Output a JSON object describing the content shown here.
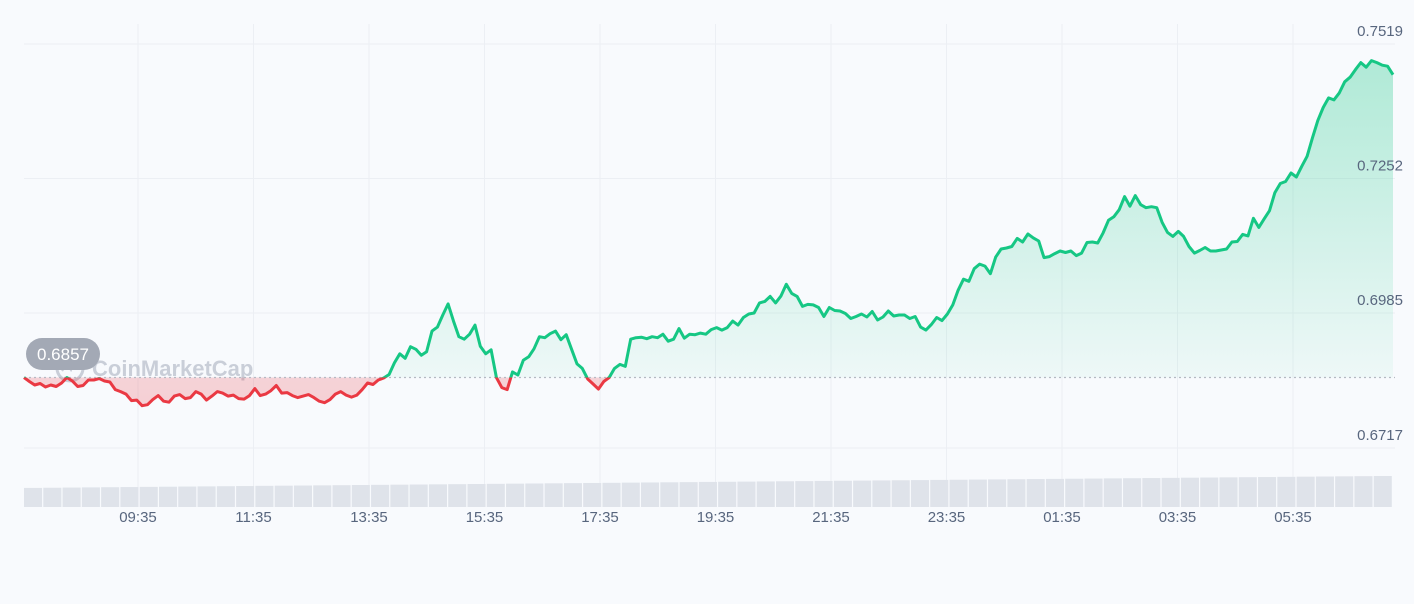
{
  "chart_data": {
    "type": "area",
    "title": "",
    "xlabel": "",
    "ylabel": "",
    "x_ticks": [
      "09:35",
      "11:35",
      "13:35",
      "15:35",
      "17:35",
      "19:35",
      "21:35",
      "23:35",
      "01:35",
      "03:35",
      "05:35"
    ],
    "y_ticks": [
      0.7519,
      0.7252,
      0.6985,
      0.6717
    ],
    "y_tick_labels": [
      "0.7519",
      "0.7252",
      "0.6985",
      "0.6717"
    ],
    "ylim": [
      0.6717,
      0.7519
    ],
    "reference_value": 0.6857,
    "reference_label": "0.6857",
    "grid": true,
    "colors": {
      "up": "#16c784",
      "down": "#ea3943",
      "volume": "#dfe3ea",
      "badge": "#a3a9b5"
    },
    "series": [
      {
        "values": [
          0.6857,
          0.6849,
          0.6842,
          0.6845,
          0.6838,
          0.6842,
          0.6839,
          0.6846,
          0.6857,
          0.685,
          0.6839,
          0.6841,
          0.6852,
          0.6852,
          0.6855,
          0.685,
          0.6848,
          0.6833,
          0.6829,
          0.6824,
          0.6811,
          0.6812,
          0.6801,
          0.6803,
          0.6813,
          0.6821,
          0.681,
          0.6808,
          0.682,
          0.6823,
          0.6815,
          0.6817,
          0.6829,
          0.6824,
          0.6812,
          0.682,
          0.6829,
          0.6826,
          0.682,
          0.6822,
          0.6815,
          0.6814,
          0.6821,
          0.6835,
          0.6821,
          0.6824,
          0.6831,
          0.6841,
          0.6826,
          0.6827,
          0.6821,
          0.6817,
          0.682,
          0.6823,
          0.6817,
          0.681,
          0.6807,
          0.6813,
          0.6824,
          0.6829,
          0.6822,
          0.6818,
          0.6822,
          0.6833,
          0.6846,
          0.6843,
          0.6852,
          0.6856,
          0.6863,
          0.6886,
          0.6904,
          0.6895,
          0.6918,
          0.6913,
          0.6901,
          0.6908,
          0.6949,
          0.6957,
          0.6981,
          0.7003,
          0.6969,
          0.6938,
          0.6933,
          0.6943,
          0.6961,
          0.6919,
          0.6904,
          0.6912,
          0.6857,
          0.6837,
          0.6833,
          0.6868,
          0.6862,
          0.6891,
          0.6898,
          0.6914,
          0.6938,
          0.6936,
          0.6944,
          0.6949,
          0.6932,
          0.6942,
          0.6913,
          0.6884,
          0.6875,
          0.6854,
          0.6844,
          0.6834,
          0.6849,
          0.6857,
          0.6875,
          0.6883,
          0.6879,
          0.6933,
          0.6936,
          0.6937,
          0.6934,
          0.6938,
          0.6936,
          0.6943,
          0.6929,
          0.6933,
          0.6954,
          0.6935,
          0.6943,
          0.6942,
          0.6945,
          0.6943,
          0.6952,
          0.6956,
          0.6951,
          0.6956,
          0.6969,
          0.6961,
          0.6976,
          0.6983,
          0.6985,
          0.7005,
          0.7008,
          0.7018,
          0.7005,
          0.7019,
          0.7042,
          0.7024,
          0.7018,
          0.6998,
          0.7002,
          0.7001,
          0.6996,
          0.6978,
          0.6996,
          0.699,
          0.6989,
          0.6984,
          0.6974,
          0.6978,
          0.6983,
          0.6977,
          0.6988,
          0.6971,
          0.6977,
          0.6989,
          0.6979,
          0.6981,
          0.6981,
          0.6974,
          0.6978,
          0.6957,
          0.6951,
          0.6962,
          0.6976,
          0.697,
          0.6983,
          0.7001,
          0.703,
          0.7052,
          0.7048,
          0.7073,
          0.7082,
          0.7078,
          0.7063,
          0.7096,
          0.7112,
          0.7114,
          0.7117,
          0.7133,
          0.7126,
          0.7142,
          0.7134,
          0.7128,
          0.7095,
          0.7097,
          0.7103,
          0.7108,
          0.7105,
          0.7108,
          0.7099,
          0.7104,
          0.7125,
          0.7126,
          0.7124,
          0.7144,
          0.7169,
          0.7176,
          0.719,
          0.7216,
          0.7197,
          0.7218,
          0.72,
          0.7194,
          0.7196,
          0.7194,
          0.7165,
          0.7145,
          0.7137,
          0.7147,
          0.7137,
          0.7117,
          0.7104,
          0.7109,
          0.7115,
          0.7108,
          0.7108,
          0.711,
          0.7112,
          0.7126,
          0.7127,
          0.7141,
          0.7138,
          0.7173,
          0.7155,
          0.7172,
          0.7188,
          0.7224,
          0.7242,
          0.7246,
          0.7263,
          0.7255,
          0.7276,
          0.7296,
          0.7333,
          0.7367,
          0.7393,
          0.7412,
          0.7408,
          0.7422,
          0.7444,
          0.7453,
          0.7468,
          0.7482,
          0.7473,
          0.7486,
          0.7482,
          0.7477,
          0.7475,
          0.7458
        ]
      }
    ],
    "volume_values": [
      0.3,
      0.31,
      0.32,
      0.33,
      0.34,
      0.35,
      0.36,
      0.37,
      0.38,
      0.39,
      0.4,
      0.41,
      0.42,
      0.43,
      0.44,
      0.45,
      0.46,
      0.47,
      0.48,
      0.49,
      0.5,
      0.51,
      0.52,
      0.53,
      0.54,
      0.55,
      0.56,
      0.57,
      0.58,
      0.59,
      0.6,
      0.61,
      0.62,
      0.63,
      0.64,
      0.65,
      0.66,
      0.67,
      0.68,
      0.69,
      0.7,
      0.71,
      0.72,
      0.73,
      0.74,
      0.75,
      0.76,
      0.77,
      0.78,
      0.79,
      0.8,
      0.81,
      0.82,
      0.83,
      0.84,
      0.85,
      0.86,
      0.87,
      0.88,
      0.89,
      0.9,
      0.91,
      0.92,
      0.93,
      0.94,
      0.95,
      0.96,
      0.97,
      0.98,
      0.99,
      1.0
    ]
  },
  "badge_label": "0.6857",
  "watermark": {
    "text": "CoinMarketCap",
    "icon": "coinmarketcap-logo-icon"
  }
}
